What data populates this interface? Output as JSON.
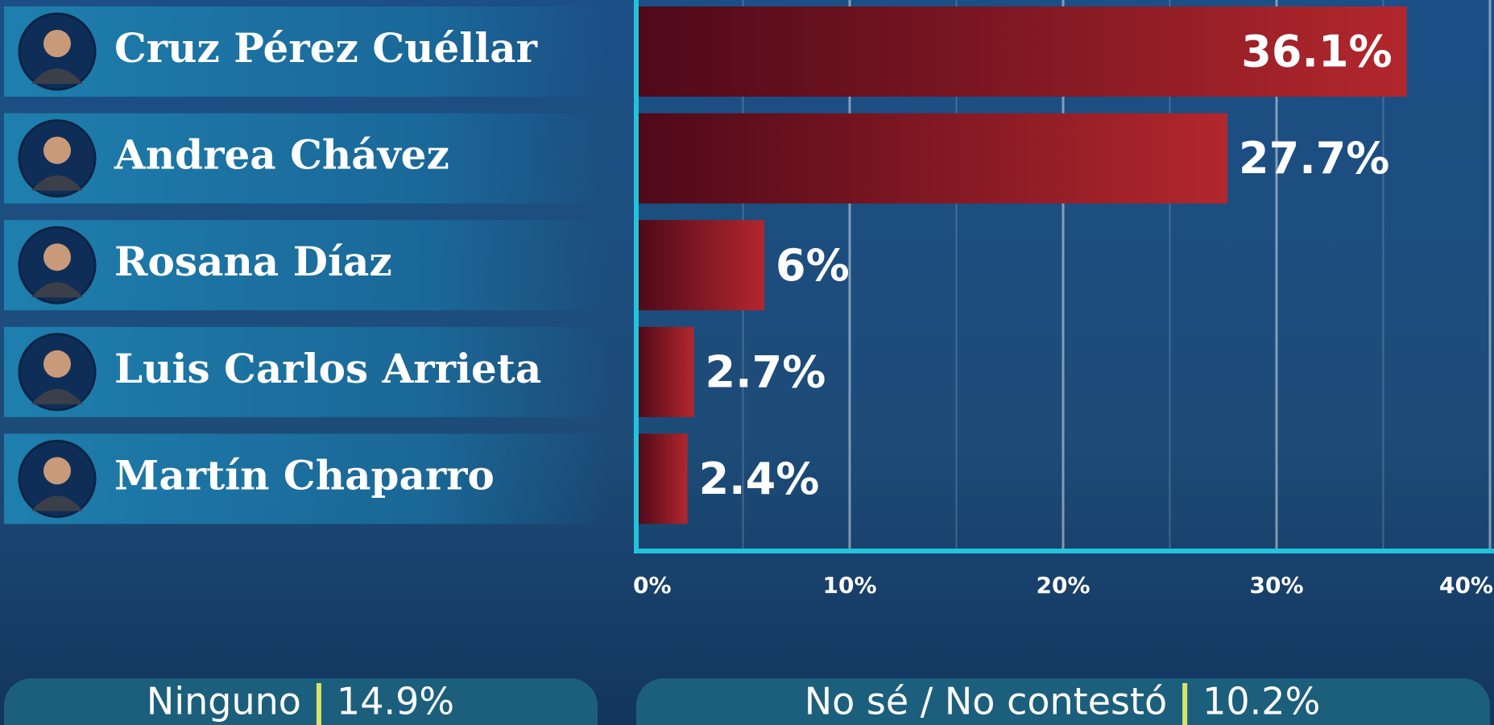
{
  "chart_data": {
    "type": "bar",
    "orientation": "horizontal",
    "categories": [
      "Cruz Pérez Cuéllar",
      "Andrea Chávez",
      "Rosana Díaz",
      "Luis Carlos Arrieta",
      "Martín Chaparro"
    ],
    "values": [
      36.1,
      27.7,
      6,
      2.7,
      2.4
    ],
    "value_labels": [
      "36.1%",
      "27.7%",
      "6%",
      "2.7%",
      "2.4%"
    ],
    "xlim": [
      0,
      40
    ],
    "xticks": [
      {
        "value": 0,
        "label": "0%"
      },
      {
        "value": 10,
        "label": "10%"
      },
      {
        "value": 20,
        "label": "20%"
      },
      {
        "value": 30,
        "label": "30%"
      },
      {
        "value": 40,
        "label": "40%"
      }
    ],
    "minor_xticks": [
      5,
      15,
      25,
      35
    ],
    "grid": true,
    "color": "#b3272d",
    "other_responses": [
      {
        "label": "Ninguno",
        "value": 14.9,
        "value_label": "14.9%"
      },
      {
        "label": "No sé / No contestó",
        "value": 10.2,
        "value_label": "10.2%"
      }
    ]
  }
}
